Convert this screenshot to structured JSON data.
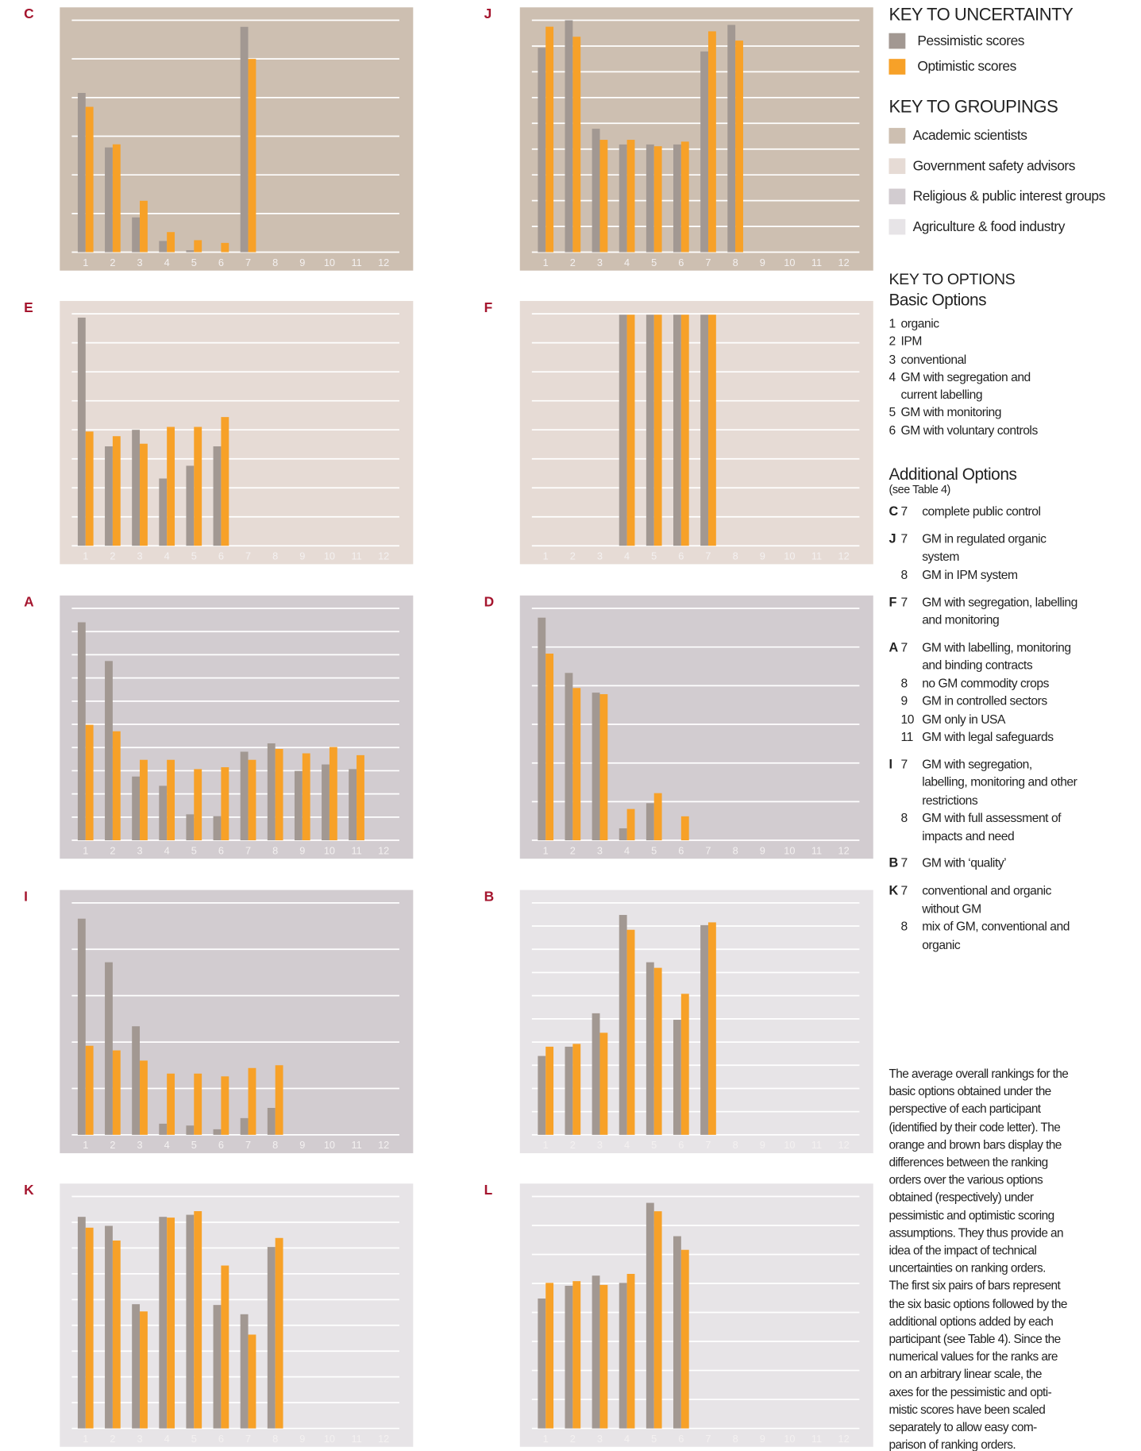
{
  "chart_data": [
    {
      "type": "bar",
      "label": "C",
      "background": "#cdbfb1",
      "categories": [
        "1",
        "2",
        "3",
        "4",
        "5",
        "6",
        "7",
        "8",
        "9",
        "10",
        "11",
        "12"
      ],
      "ylim": [
        0,
        6
      ],
      "yticks": [
        0,
        1,
        2,
        3,
        4,
        5,
        6
      ],
      "grid": true,
      "series": [
        {
          "color": "#a29892",
          "values": [
            4.12,
            2.71,
            0.9,
            0.29,
            0.05,
            null,
            5.83,
            null,
            null,
            null,
            null,
            null
          ]
        },
        {
          "color": "#f7a128",
          "values": [
            3.76,
            2.79,
            1.33,
            0.52,
            0.31,
            0.24,
            5.0,
            null,
            null,
            null,
            null,
            null
          ]
        }
      ]
    },
    {
      "type": "bar",
      "label": "J",
      "background": "#cdbfb1",
      "categories": [
        "1",
        "2",
        "3",
        "4",
        "5",
        "6",
        "7",
        "8",
        "9",
        "10",
        "11",
        "12"
      ],
      "ylim": [
        0,
        9
      ],
      "yticks": [
        0,
        1,
        2,
        3,
        4,
        5,
        6,
        7,
        8,
        9
      ],
      "grid": true,
      "series": [
        {
          "color": "#a29892",
          "values": [
            7.93,
            9.0,
            4.79,
            4.18,
            4.18,
            4.18,
            7.79,
            8.82,
            null,
            null,
            null,
            null
          ]
        },
        {
          "color": "#f7a128",
          "values": [
            8.75,
            8.36,
            4.36,
            4.36,
            4.11,
            4.29,
            8.57,
            8.21,
            null,
            null,
            null,
            null
          ]
        }
      ]
    },
    {
      "type": "bar",
      "label": "E",
      "background": "#e6dbd5",
      "categories": [
        "1",
        "2",
        "3",
        "4",
        "5",
        "6",
        "7",
        "8",
        "9",
        "10",
        "11",
        "12"
      ],
      "ylim": [
        0,
        8
      ],
      "yticks": [
        0,
        1,
        2,
        3,
        4,
        5,
        6,
        7,
        8
      ],
      "grid": true,
      "series": [
        {
          "color": "#a29892",
          "values": [
            7.87,
            3.43,
            4.0,
            2.32,
            2.76,
            3.43,
            null,
            null,
            null,
            null,
            null,
            null
          ]
        },
        {
          "color": "#f7a128",
          "values": [
            3.94,
            3.78,
            3.52,
            4.1,
            4.1,
            4.44,
            null,
            null,
            null,
            null,
            null,
            null
          ]
        }
      ]
    },
    {
      "type": "bar",
      "label": "F",
      "background": "#e6dbd5",
      "categories": [
        "1",
        "2",
        "3",
        "4",
        "5",
        "6",
        "7",
        "8",
        "9",
        "10",
        "11",
        "12"
      ],
      "ylim": [
        0,
        8
      ],
      "yticks": [
        0,
        1,
        2,
        3,
        4,
        5,
        6,
        7,
        8
      ],
      "grid": true,
      "series": [
        {
          "color": "#a29892",
          "values": [
            null,
            null,
            null,
            7.97,
            7.97,
            7.97,
            7.97,
            null,
            null,
            null,
            null,
            null
          ]
        },
        {
          "color": "#f7a128",
          "values": [
            null,
            null,
            null,
            7.97,
            7.97,
            7.97,
            7.97,
            null,
            null,
            null,
            null,
            null
          ]
        }
      ]
    },
    {
      "type": "bar",
      "label": "A",
      "background": "#d2ccd0",
      "categories": [
        "1",
        "2",
        "3",
        "4",
        "5",
        "6",
        "7",
        "8",
        "9",
        "10",
        "11",
        "12"
      ],
      "ylim": [
        0,
        10
      ],
      "yticks": [
        0,
        1,
        2,
        3,
        4,
        5,
        6,
        7,
        8,
        9,
        10
      ],
      "grid": true,
      "series": [
        {
          "color": "#a29892",
          "values": [
            9.4,
            7.73,
            2.75,
            2.35,
            1.12,
            1.04,
            3.82,
            4.18,
            2.99,
            3.27,
            3.07,
            null
          ]
        },
        {
          "color": "#f7a128",
          "values": [
            4.98,
            4.7,
            3.47,
            3.47,
            3.07,
            3.15,
            3.47,
            3.94,
            3.75,
            4.02,
            3.67,
            null
          ]
        }
      ]
    },
    {
      "type": "bar",
      "label": "D",
      "background": "#d2ccd0",
      "categories": [
        "1",
        "2",
        "3",
        "4",
        "5",
        "6",
        "7",
        "8",
        "9",
        "10",
        "11",
        "12"
      ],
      "ylim": [
        0,
        6
      ],
      "yticks": [
        0,
        1,
        2,
        3,
        4,
        5,
        6
      ],
      "grid": true,
      "series": [
        {
          "color": "#a29892",
          "values": [
            5.76,
            4.33,
            3.82,
            0.31,
            0.96,
            null,
            null,
            null,
            null,
            null,
            null,
            null
          ]
        },
        {
          "color": "#f7a128",
          "values": [
            4.83,
            3.94,
            3.78,
            0.81,
            1.22,
            0.62,
            null,
            null,
            null,
            null,
            null,
            null
          ]
        }
      ]
    },
    {
      "type": "bar",
      "label": "I",
      "background": "#d2ccd0",
      "categories": [
        "1",
        "2",
        "3",
        "4",
        "5",
        "6",
        "7",
        "8",
        "9",
        "10",
        "11",
        "12"
      ],
      "ylim": [
        0,
        5
      ],
      "yticks": [
        0,
        1,
        2,
        3,
        4,
        5
      ],
      "grid": true,
      "series": [
        {
          "color": "#a29892",
          "values": [
            4.66,
            3.72,
            2.34,
            0.24,
            0.2,
            0.12,
            0.36,
            0.58,
            null,
            null,
            null,
            null
          ]
        },
        {
          "color": "#f7a128",
          "values": [
            1.92,
            1.82,
            1.6,
            1.32,
            1.32,
            1.26,
            1.44,
            1.5,
            null,
            null,
            null,
            null
          ]
        }
      ]
    },
    {
      "type": "bar",
      "label": "B",
      "background": "#e7e4e7",
      "categories": [
        "1",
        "2",
        "3",
        "4",
        "5",
        "6",
        "7",
        "8",
        "9",
        "10",
        "11",
        "12"
      ],
      "ylim": [
        0,
        10
      ],
      "yticks": [
        0,
        1,
        2,
        3,
        4,
        5,
        6,
        7,
        8,
        9,
        10
      ],
      "grid": true,
      "series": [
        {
          "color": "#a29892",
          "values": [
            3.4,
            3.8,
            5.24,
            9.48,
            7.44,
            4.96,
            9.04,
            null,
            null,
            null,
            null,
            null
          ]
        },
        {
          "color": "#f7a128",
          "values": [
            3.8,
            3.92,
            4.4,
            8.84,
            7.2,
            6.08,
            9.16,
            null,
            null,
            null,
            null,
            null
          ]
        }
      ]
    },
    {
      "type": "bar",
      "label": "K",
      "background": "#e7e4e7",
      "categories": [
        "1",
        "2",
        "3",
        "4",
        "5",
        "6",
        "7",
        "8",
        "9",
        "10",
        "11",
        "12"
      ],
      "ylim": [
        0,
        9
      ],
      "yticks": [
        0,
        1,
        2,
        3,
        4,
        5,
        6,
        7,
        8,
        9
      ],
      "grid": true,
      "series": [
        {
          "color": "#a29892",
          "values": [
            8.21,
            7.86,
            4.82,
            8.21,
            8.29,
            4.79,
            4.43,
            7.04,
            null,
            null,
            null,
            null
          ]
        },
        {
          "color": "#f7a128",
          "values": [
            7.79,
            7.29,
            4.54,
            8.18,
            8.43,
            6.32,
            3.64,
            7.39,
            null,
            null,
            null,
            null
          ]
        }
      ]
    },
    {
      "type": "bar",
      "label": "L",
      "background": "#e7e4e7",
      "categories": [
        "1",
        "2",
        "3",
        "4",
        "5",
        "6",
        "7",
        "8",
        "9",
        "10",
        "11",
        "12"
      ],
      "ylim": [
        0,
        8
      ],
      "yticks": [
        0,
        1,
        2,
        3,
        4,
        5,
        6,
        7,
        8
      ],
      "grid": true,
      "series": [
        {
          "color": "#a29892",
          "values": [
            4.48,
            4.92,
            5.27,
            5.02,
            7.78,
            6.63,
            null,
            null,
            null,
            null,
            null,
            null
          ]
        },
        {
          "color": "#f7a128",
          "values": [
            5.02,
            5.08,
            4.95,
            5.33,
            7.49,
            6.16,
            null,
            null,
            null,
            null,
            null,
            null
          ]
        }
      ]
    }
  ],
  "key": {
    "uncertainty": {
      "title": "KEY TO UNCERTAINTY",
      "items": [
        {
          "name": "Pessimistic scores",
          "color": "#a29892"
        },
        {
          "name": "Optimistic scores",
          "color": "#f7a128"
        }
      ]
    },
    "groupings": {
      "title": "KEY TO GROUPINGS",
      "items": [
        {
          "name": "Academic scientists",
          "color": "#cdbfb1"
        },
        {
          "name": "Government safety advisors",
          "color": "#e6dbd5"
        },
        {
          "name": "Religious & public interest groups",
          "color": "#d2ccd0"
        },
        {
          "name": "Agriculture & food industry",
          "color": "#e7e4e7"
        }
      ]
    },
    "options": {
      "title": "KEY TO OPTIONS",
      "basic_title": "Basic Options",
      "basic": [
        {
          "number": "1",
          "text": "organic"
        },
        {
          "number": "2",
          "text": "IPM"
        },
        {
          "number": "3",
          "text": "conventional"
        },
        {
          "number": "4",
          "text": "GM with segregation and current labelling"
        },
        {
          "number": "5",
          "text": "GM with monitoring"
        },
        {
          "number": "6",
          "text": "GM with voluntary controls"
        }
      ],
      "additional_title": "Additional Options",
      "additional_note": "(see Table 4)",
      "additional": [
        {
          "participant": "C",
          "items": [
            {
              "number": "7",
              "text": "complete public control"
            }
          ]
        },
        {
          "participant": "J",
          "items": [
            {
              "number": "7",
              "text": "GM in regulated organic system"
            },
            {
              "number": "8",
              "text": "GM in IPM system"
            }
          ]
        },
        {
          "participant": "F",
          "items": [
            {
              "number": "7",
              "text": "GM with segregation, labelling and monitoring"
            }
          ]
        },
        {
          "participant": "A",
          "items": [
            {
              "number": "7",
              "text": "GM with labelling, monitoring and binding contracts"
            },
            {
              "number": "8",
              "text": "no GM commodity crops"
            },
            {
              "number": "9",
              "text": "GM in controlled sectors"
            },
            {
              "number": "10",
              "text": "GM only in USA"
            },
            {
              "number": "11",
              "text": "GM with legal safeguards"
            }
          ]
        },
        {
          "participant": "I",
          "items": [
            {
              "number": "7",
              "text": "GM with segregation, labelling, monitoring and other restrictions"
            },
            {
              "number": "8",
              "text": "GM with full assessment of impacts and need"
            }
          ]
        },
        {
          "participant": "B",
          "items": [
            {
              "number": "7",
              "text": "GM with ‘quality’"
            }
          ]
        },
        {
          "participant": "K",
          "items": [
            {
              "number": "7",
              "text": "conventional and organic without GM"
            },
            {
              "number": "8",
              "text": "mix of GM, conventional and organic"
            }
          ]
        }
      ]
    }
  },
  "caption": [
    "The average overall rankings for the",
    "basic options obtained under the",
    "perspective of each participant",
    "(identified by their code letter). The",
    "orange and brown bars display the",
    "differences between the ranking",
    "orders over the various options",
    "obtained (respectively) under",
    "pessimistic and optimistic scoring",
    "assumptions. They thus provide an",
    "idea of the impact of technical",
    "uncertainties on ranking orders.",
    "The first six pairs of bars represent",
    "the six basic options followed by the",
    "additional options added by each",
    "participant (see Table 4). Since the",
    "numerical values for the ranks are",
    "on an arbitrary linear scale, the",
    "axes for the pessimistic and opti-",
    "mistic scores have been scaled",
    "separately to allow easy com-",
    "parison of ranking orders."
  ]
}
